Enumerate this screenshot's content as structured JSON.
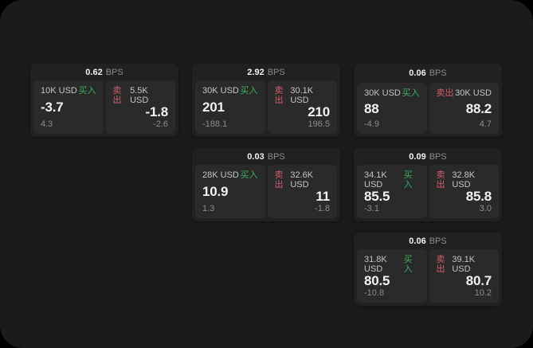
{
  "labels": {
    "bps_unit": "BPS",
    "buy": "买入",
    "sell": "卖出"
  },
  "colors": {
    "surface": "#1b1b1b",
    "card": "#212121",
    "panel": "#2a2a2a",
    "buy": "#3cae5c",
    "sell": "#d45b6e"
  },
  "cards": [
    {
      "grid": {
        "row": 1,
        "col": 1
      },
      "bps": "0.62",
      "buy": {
        "size": "10K USD",
        "price": "-3.7",
        "sub": "4.3"
      },
      "sell": {
        "size": "5.5K USD",
        "price": "-1.8",
        "sub": "-2.6"
      }
    },
    {
      "grid": {
        "row": 1,
        "col": 2
      },
      "bps": "2.92",
      "buy": {
        "size": "30K USD",
        "price": "201",
        "sub": "-188.1"
      },
      "sell": {
        "size": "30.1K USD",
        "price": "210",
        "sub": "196.5"
      }
    },
    {
      "grid": {
        "row": 1,
        "col": 3
      },
      "bps": "0.06",
      "buy": {
        "size": "30K USD",
        "price": "88",
        "sub": "-4.9"
      },
      "sell": {
        "size": "30K USD",
        "price": "88.2",
        "sub": "4.7"
      }
    },
    {
      "grid": {
        "row": 2,
        "col": 2
      },
      "bps": "0.03",
      "buy": {
        "size": "28K USD",
        "price": "10.9",
        "sub": "1.3"
      },
      "sell": {
        "size": "32.6K USD",
        "price": "11",
        "sub": "-1.8"
      }
    },
    {
      "grid": {
        "row": 2,
        "col": 3
      },
      "bps": "0.09",
      "buy": {
        "size": "34.1K USD",
        "price": "85.5",
        "sub": "-3.1"
      },
      "sell": {
        "size": "32.8K USD",
        "price": "85.8",
        "sub": "3.0"
      }
    },
    {
      "grid": {
        "row": 3,
        "col": 3
      },
      "bps": "0.06",
      "buy": {
        "size": "31.8K USD",
        "price": "80.5",
        "sub": "-10.8"
      },
      "sell": {
        "size": "39.1K USD",
        "price": "80.7",
        "sub": "10.2"
      }
    }
  ]
}
